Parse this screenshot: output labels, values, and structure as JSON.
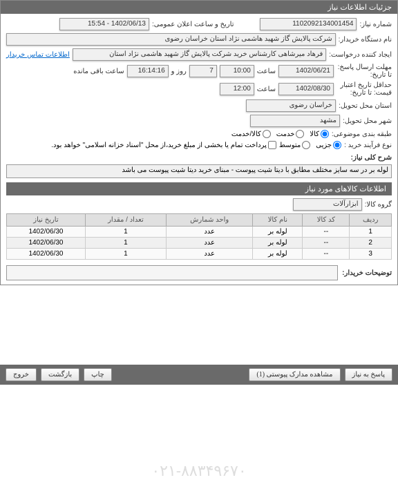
{
  "panel_title": "جزئیات اطلاعات نیاز",
  "need_number_label": "شماره نیاز:",
  "need_number": "1102092134001454",
  "announce_label": "تاریخ و ساعت اعلان عمومی:",
  "announce_value": "1402/06/13 - 15:54",
  "buyer_label": "نام دستگاه خریدار:",
  "buyer_value": "شرکت پالایش گاز شهید هاشمی نژاد   استان خراسان رضوی",
  "creator_label": "ایجاد کننده درخواست:",
  "creator_value": "فرهاد میرشاهی کارشناس خرید شرکت پالایش گاز شهید هاشمی نژاد   استان",
  "contact_link": "اطلاعات تماس خریدار",
  "deadline_label": "مهلت ارسال پاسخ:",
  "to_label": "تا تاریخ:",
  "deadline_date": "1402/06/21",
  "time_label": "ساعت",
  "deadline_time": "10:00",
  "days_remaining": "7",
  "days_word": "روز و",
  "time_remaining": "16:14:16",
  "remaining_text": "ساعت باقی مانده",
  "validity_label": "حداقل تاریخ اعتبار",
  "validity_sub": "قیمت:",
  "validity_to": "تا تاریخ:",
  "validity_date": "1402/08/30",
  "validity_time": "12:00",
  "province_label": "استان محل تحویل:",
  "province_value": "خراسان رضوی",
  "city_label": "شهر محل تحویل:",
  "city_value": "مشهد",
  "category_label": "طبقه بندی موضوعی:",
  "cat_goods": "کالا",
  "cat_service": "خدمت",
  "cat_both": "کالا/خدمت",
  "buy_type_label": "نوع فرآیند خرید :",
  "buy_minor": "جزیی",
  "buy_medium": "متوسط",
  "payment_note": "پرداخت تمام یا بخشی از مبلغ خرید،از محل \"اسناد خزانه اسلامی\" خواهد بود.",
  "desc_label": "شرح کلی نیاز:",
  "desc_value": "لوله بر در سه سایز مختلف مطابق با دیتا شیت پیوست - مبنای خرید دیتا شیت پیوست می باشد",
  "items_panel_title": "اطلاعات کالاهای مورد نیاز",
  "group_label": "گروه کالا:",
  "group_value": "ابزارآلات",
  "watermark": "۰۲۱-۸۸۳۴۹۶۷۰",
  "columns": {
    "row": "ردیف",
    "code": "کد کالا",
    "name": "نام کالا",
    "unit": "واحد شمارش",
    "qty": "تعداد / مقدار",
    "date": "تاریخ نیاز"
  },
  "rows": [
    {
      "n": "1",
      "code": "--",
      "name": "لوله بر",
      "unit": "عدد",
      "qty": "1",
      "date": "1402/06/30"
    },
    {
      "n": "2",
      "code": "--",
      "name": "لوله بر",
      "unit": "عدد",
      "qty": "1",
      "date": "1402/06/30"
    },
    {
      "n": "3",
      "code": "--",
      "name": "لوله بر",
      "unit": "عدد",
      "qty": "1",
      "date": "1402/06/30"
    }
  ],
  "buyer_notes_label": "توضیحات خریدار:",
  "btn_reply": "پاسخ به نیاز",
  "btn_docs": "مشاهده مدارک پیوستی (1)",
  "btn_print": "چاپ",
  "btn_back": "بازگشت",
  "btn_exit": "خروج"
}
